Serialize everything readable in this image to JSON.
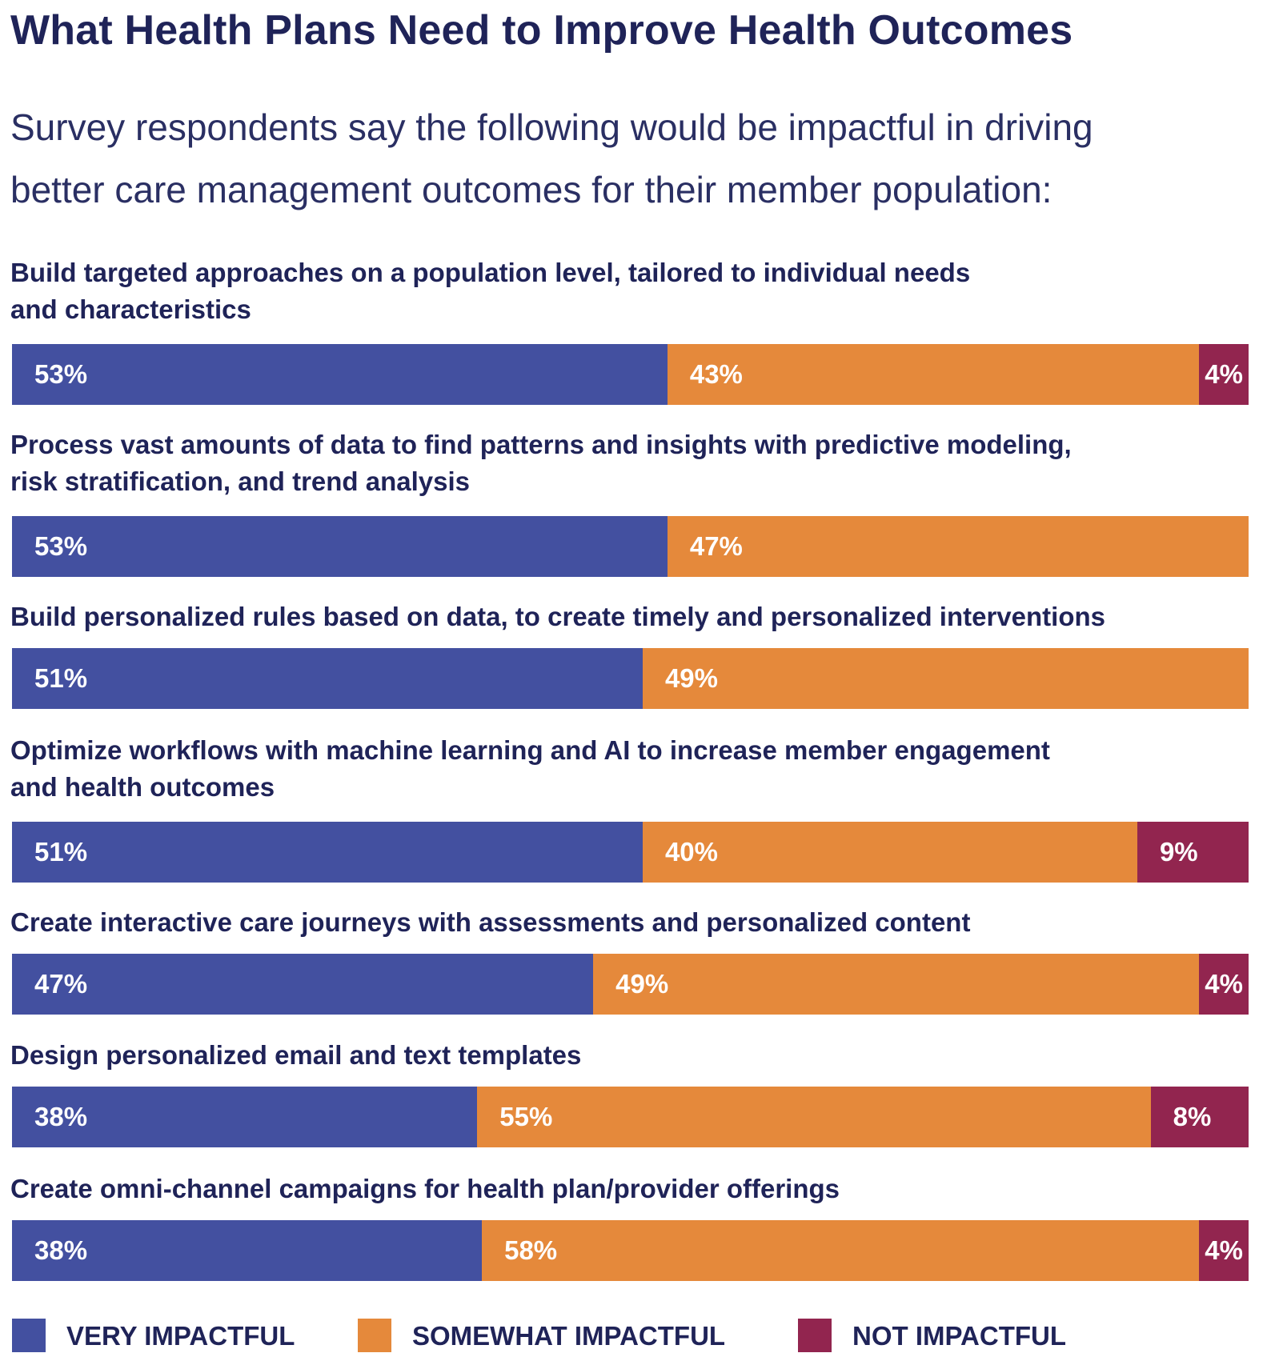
{
  "title": "What Health Plans Need to Improve Health Outcomes",
  "subtitle_lines": [
    "Survey respondents say the following would be impactful in driving",
    "better care management outcomes for their member population:"
  ],
  "colors": {
    "very": "#4350a0",
    "somewhat": "#e5893b",
    "not": "#92254f"
  },
  "chart_data": {
    "type": "bar",
    "orientation": "horizontal",
    "stacked": true,
    "unit": "%",
    "categories": [
      "Build targeted approaches on a population level, tailored to individual needs and characteristics",
      "Process vast amounts of data to find patterns and insights with predictive modeling, risk stratification, and trend analysis",
      "Build personalized rules based on data, to create timely and personalized interventions",
      "Optimize workflows with machine learning and AI to increase member engagement and health outcomes",
      "Create interactive care journeys with assessments and personalized content",
      "Design personalized email and text templates",
      "Create omni-channel campaigns for health plan/provider offerings"
    ],
    "category_lines": [
      [
        "Build targeted approaches on a population level, tailored to individual needs",
        "and characteristics"
      ],
      [
        "Process vast amounts of data to find patterns and insights with predictive modeling,",
        "risk stratification, and trend analysis"
      ],
      [
        "Build personalized rules based on data, to create timely and personalized interventions"
      ],
      [
        "Optimize workflows with machine learning and AI to increase member engagement",
        "and health outcomes"
      ],
      [
        "Create interactive care journeys with assessments and personalized content"
      ],
      [
        "Design personalized email and text templates"
      ],
      [
        "Create omni-channel campaigns for health plan/provider offerings"
      ]
    ],
    "series": [
      {
        "name": "VERY IMPACTFUL",
        "key": "very",
        "values": [
          53,
          53,
          51,
          51,
          47,
          38,
          38
        ]
      },
      {
        "name": "SOMEWHAT IMPACTFUL",
        "key": "somewhat",
        "values": [
          43,
          47,
          49,
          40,
          49,
          55,
          58
        ]
      },
      {
        "name": "NOT IMPACTFUL",
        "key": "not",
        "values": [
          4,
          0,
          0,
          9,
          4,
          8,
          4
        ]
      }
    ],
    "legend": [
      "VERY IMPACTFUL",
      "SOMEWHAT IMPACTFUL",
      "NOT IMPACTFUL"
    ],
    "legend_position": "bottom"
  }
}
